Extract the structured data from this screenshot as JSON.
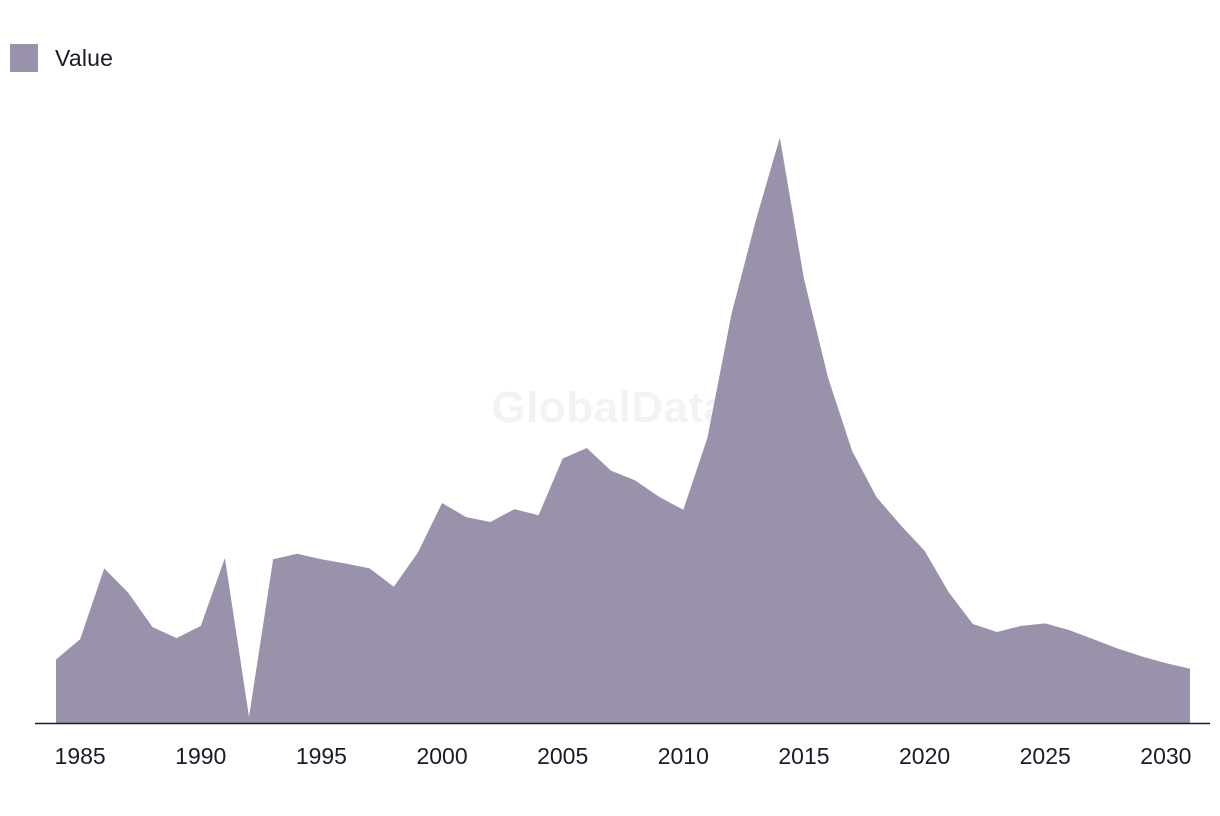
{
  "legend": {
    "label": "Value",
    "color": "#9a92aa"
  },
  "watermark": "GlobalData",
  "colors": {
    "area": "#9a92aa",
    "axis": "#1a1a2a"
  },
  "chart_data": {
    "type": "area",
    "title": "",
    "xlabel": "",
    "ylabel": "",
    "legend_position": "top-left",
    "grid": false,
    "xlim": [
      1984,
      2031
    ],
    "ylim": [
      0,
      100
    ],
    "x_ticks": [
      1985,
      1990,
      1995,
      2000,
      2005,
      2010,
      2015,
      2020,
      2025,
      2030
    ],
    "series": [
      {
        "name": "Value",
        "x": [
          1984,
          1985,
          1986,
          1987,
          1988,
          1989,
          1990,
          1991,
          1992,
          1993,
          1994,
          1995,
          1996,
          1997,
          1998,
          1999,
          2000,
          2001,
          2002,
          2003,
          2004,
          2005,
          2006,
          2007,
          2008,
          2009,
          2010,
          2011,
          2012,
          2013,
          2014,
          2015,
          2016,
          2017,
          2018,
          2019,
          2020,
          2021,
          2022,
          2023,
          2024,
          2025,
          2026,
          2027,
          2028,
          2029,
          2030,
          2031
        ],
        "values": [
          10.4,
          13.7,
          25.3,
          21.3,
          15.7,
          13.9,
          15.9,
          27.0,
          1.0,
          26.8,
          27.7,
          26.8,
          26.1,
          25.3,
          22.3,
          27.9,
          36.0,
          33.7,
          32.9,
          35.0,
          34.0,
          43.3,
          45.0,
          41.3,
          39.7,
          37.0,
          34.9,
          46.7,
          67.0,
          82.2,
          95.8,
          72.7,
          56.5,
          44.5,
          37.0,
          32.4,
          28.2,
          21.4,
          16.2,
          14.9,
          15.9,
          16.3,
          15.2,
          13.7,
          12.2,
          10.9,
          9.8,
          8.9
        ]
      }
    ]
  }
}
